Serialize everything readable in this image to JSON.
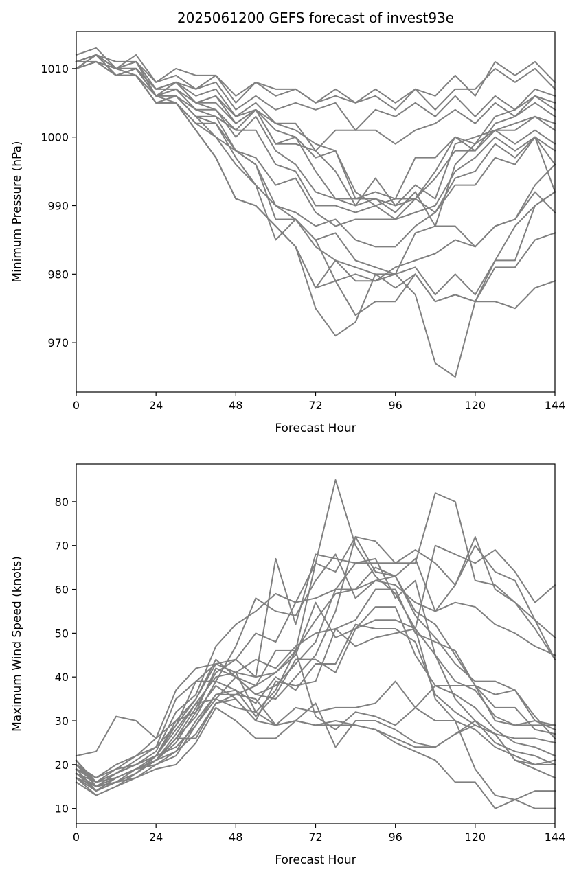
{
  "chart_data": [
    {
      "type": "line",
      "title": "2025061200 GEFS forecast of invest93e",
      "xlabel": "Forecast Hour",
      "ylabel": "Minimum Pressure (hPa)",
      "xlim": [
        0,
        144
      ],
      "ylim": [
        962.8,
        1015.4
      ],
      "xticks": [
        0,
        24,
        48,
        72,
        96,
        120,
        144
      ],
      "yticks": [
        970,
        980,
        990,
        1000,
        1010
      ],
      "grid": false,
      "line_color": "#808080",
      "x": [
        0,
        6,
        12,
        18,
        24,
        30,
        36,
        42,
        48,
        54,
        60,
        66,
        72,
        78,
        84,
        90,
        96,
        102,
        108,
        114,
        120,
        126,
        132,
        138,
        144
      ],
      "series": [
        {
          "values": [
            1012,
            1013,
            1010,
            1012,
            1008,
            1010,
            1009,
            1009,
            1006,
            1008,
            1007,
            1007,
            1005,
            1007,
            1005,
            1007,
            1005,
            1007,
            1006,
            1009,
            1006,
            1011,
            1009,
            1011,
            1008
          ]
        },
        {
          "values": [
            1011,
            1012,
            1011,
            1011,
            1008,
            1009,
            1007,
            1009,
            1005,
            1008,
            1006,
            1007,
            1005,
            1006,
            1005,
            1006,
            1004,
            1007,
            1004,
            1007,
            1007,
            1010,
            1008,
            1010,
            1007
          ]
        },
        {
          "values": [
            1011,
            1012,
            1009,
            1010,
            1007,
            1008,
            1007,
            1008,
            1004,
            1006,
            1004,
            1005,
            1004,
            1005,
            1001,
            1004,
            1003,
            1005,
            1003,
            1006,
            1003,
            1006,
            1004,
            1007,
            1006
          ]
        },
        {
          "values": [
            1010,
            1012,
            1010,
            1011,
            1007,
            1008,
            1006,
            1007,
            1003,
            1005,
            1002,
            1002,
            998,
            1001,
            1001,
            1001,
            999,
            1001,
            1002,
            1004,
            1002,
            1005,
            1003,
            1006,
            1005
          ]
        },
        {
          "values": [
            1011,
            1012,
            1009,
            1010,
            1007,
            1008,
            1005,
            1006,
            1003,
            1004,
            1002,
            1001,
            999,
            998,
            991,
            992,
            991,
            991,
            995,
            1000,
            999,
            1003,
            1004,
            1006,
            1004
          ]
        },
        {
          "values": [
            1010,
            1011,
            1010,
            1011,
            1006,
            1008,
            1005,
            1006,
            1002,
            1004,
            1001,
            1000,
            997,
            998,
            992,
            990,
            991,
            997,
            997,
            1000,
            998,
            1002,
            1003,
            1005,
            1003
          ]
        },
        {
          "values": [
            1011,
            1012,
            1010,
            1010,
            1007,
            1007,
            1005,
            1005,
            1002,
            1004,
            999,
            999,
            998,
            995,
            990,
            994,
            990,
            993,
            991,
            999,
            1000,
            1001,
            1002,
            1003,
            1002
          ]
        },
        {
          "values": [
            1010,
            1012,
            1009,
            1010,
            1006,
            1007,
            1005,
            1004,
            1001,
            1004,
            999,
            1000,
            995,
            991,
            991,
            991,
            990,
            991,
            994,
            998,
            998,
            1001,
            1001,
            1003,
            1001
          ]
        },
        {
          "values": [
            1011,
            1012,
            1010,
            1010,
            1006,
            1007,
            1004,
            1004,
            1000,
            1003,
            998,
            996,
            992,
            991,
            990,
            991,
            989,
            992,
            987,
            996,
            999,
            1001,
            999,
            1001,
            999
          ]
        },
        {
          "values": [
            1010,
            1012,
            1009,
            1009,
            1005,
            1006,
            1004,
            1003,
            1001,
            1001,
            996,
            995,
            990,
            990,
            989,
            990,
            988,
            989,
            990,
            995,
            997,
            1000,
            998,
            1000,
            998
          ]
        },
        {
          "values": [
            1011,
            1012,
            1010,
            1010,
            1006,
            1006,
            1003,
            1003,
            998,
            997,
            993,
            994,
            989,
            987,
            988,
            988,
            988,
            991,
            989,
            994,
            995,
            999,
            997,
            1000,
            996
          ]
        },
        {
          "values": [
            1010,
            1011,
            1009,
            1009,
            1005,
            1006,
            1003,
            1002,
            998,
            996,
            990,
            989,
            987,
            988,
            985,
            984,
            984,
            987,
            989,
            993,
            993,
            997,
            996,
            1000,
            992
          ]
        },
        {
          "values": [
            1011,
            1011,
            1009,
            1009,
            1005,
            1005,
            1002,
            1002,
            997,
            993,
            990,
            988,
            985,
            986,
            982,
            981,
            980,
            986,
            987,
            987,
            984,
            987,
            988,
            993,
            996
          ]
        },
        {
          "values": [
            1011,
            1012,
            1010,
            1009,
            1005,
            1006,
            1003,
            1000,
            998,
            996,
            988,
            988,
            984,
            982,
            979,
            979,
            981,
            982,
            983,
            985,
            984,
            987,
            988,
            992,
            989
          ]
        },
        {
          "values": [
            1010,
            1012,
            1009,
            1009,
            1006,
            1005,
            1002,
            1000,
            996,
            993,
            985,
            988,
            985,
            979,
            980,
            979,
            980,
            981,
            977,
            980,
            977,
            982,
            982,
            990,
            992
          ]
        },
        {
          "values": [
            1011,
            1012,
            1009,
            1009,
            1005,
            1005,
            1001,
            997,
            991,
            990,
            987,
            984,
            978,
            982,
            981,
            980,
            978,
            980,
            976,
            977,
            976,
            976,
            975,
            978,
            979
          ]
        },
        {
          "values": [
            1010,
            1011,
            1010,
            1009,
            1005,
            1005,
            1001,
            997,
            991,
            990,
            987,
            984,
            978,
            979,
            974,
            976,
            976,
            980,
            976,
            977,
            976,
            981,
            981,
            985,
            986
          ]
        },
        {
          "values": [
            1011,
            1012,
            1009,
            1009,
            1005,
            1005,
            1001,
            997,
            991,
            990,
            987,
            984,
            975,
            971,
            973,
            980,
            980,
            977,
            967,
            965,
            976,
            982,
            987,
            990,
            992
          ]
        }
      ]
    },
    {
      "type": "line",
      "title": "",
      "xlabel": "Forecast Hour",
      "ylabel": "Maximum Wind Speed (knots)",
      "xlim": [
        0,
        144
      ],
      "ylim": [
        6.5,
        88.6
      ],
      "xticks": [
        0,
        24,
        48,
        72,
        96,
        120,
        144
      ],
      "yticks": [
        10,
        20,
        30,
        40,
        50,
        60,
        70,
        80
      ],
      "grid": false,
      "line_color": "#808080",
      "x": [
        0,
        6,
        12,
        18,
        24,
        30,
        36,
        42,
        48,
        54,
        60,
        66,
        72,
        78,
        84,
        90,
        96,
        102,
        108,
        114,
        120,
        126,
        132,
        138,
        144
      ],
      "series": [
        {
          "values": [
            22,
            23,
            31,
            30,
            26,
            30,
            32,
            42,
            40,
            36,
            35,
            40,
            45,
            55,
            72,
            71,
            66,
            66,
            82,
            80,
            62,
            61,
            57,
            51,
            44
          ]
        },
        {
          "values": [
            20,
            17,
            19,
            22,
            24,
            35,
            39,
            43,
            41,
            32,
            37,
            46,
            66,
            85,
            70,
            63,
            59,
            51,
            70,
            68,
            66,
            69,
            64,
            57,
            61
          ]
        },
        {
          "values": [
            19,
            17,
            20,
            22,
            26,
            37,
            42,
            43,
            41,
            40,
            67,
            52,
            68,
            67,
            66,
            66,
            66,
            69,
            66,
            61,
            72,
            60,
            57,
            53,
            49
          ]
        },
        {
          "values": [
            18,
            16,
            18,
            20,
            23,
            32,
            36,
            47,
            52,
            55,
            59,
            57,
            66,
            64,
            72,
            64,
            63,
            67,
            55,
            57,
            56,
            52,
            50,
            47,
            45
          ]
        },
        {
          "values": [
            21,
            16,
            19,
            20,
            22,
            29,
            39,
            39,
            47,
            58,
            55,
            54,
            62,
            68,
            58,
            62,
            61,
            57,
            55,
            61,
            70,
            64,
            62,
            53,
            44
          ]
        },
        {
          "values": [
            17,
            15,
            18,
            21,
            24,
            29,
            35,
            43,
            44,
            50,
            48,
            57,
            58,
            60,
            60,
            62,
            63,
            55,
            52,
            45,
            38,
            36,
            37,
            30,
            29
          ]
        },
        {
          "values": [
            20,
            15,
            17,
            19,
            22,
            30,
            35,
            44,
            40,
            38,
            46,
            46,
            53,
            59,
            60,
            65,
            63,
            54,
            49,
            43,
            39,
            39,
            37,
            31,
            26
          ]
        },
        {
          "values": [
            18,
            15,
            17,
            19,
            21,
            27,
            34,
            40,
            41,
            44,
            42,
            47,
            50,
            51,
            53,
            60,
            60,
            50,
            48,
            46,
            38,
            33,
            33,
            28,
            27
          ]
        },
        {
          "values": [
            19,
            16,
            18,
            20,
            22,
            28,
            34,
            35,
            40,
            36,
            38,
            43,
            48,
            60,
            66,
            67,
            58,
            62,
            45,
            39,
            37,
            31,
            29,
            30,
            28
          ]
        },
        {
          "values": [
            17,
            14,
            17,
            19,
            21,
            26,
            33,
            41,
            44,
            40,
            41,
            45,
            57,
            49,
            51,
            56,
            56,
            45,
            38,
            36,
            33,
            28,
            25,
            24,
            22
          ]
        },
        {
          "values": [
            20,
            16,
            17,
            19,
            21,
            26,
            31,
            39,
            37,
            34,
            40,
            37,
            43,
            43,
            52,
            51,
            51,
            48,
            36,
            32,
            29,
            27,
            26,
            26,
            25
          ]
        },
        {
          "values": [
            18,
            15,
            16,
            18,
            21,
            25,
            32,
            38,
            35,
            30,
            39,
            38,
            39,
            51,
            47,
            49,
            50,
            51,
            45,
            35,
            30,
            25,
            23,
            22,
            20
          ]
        },
        {
          "values": [
            19,
            14,
            17,
            19,
            21,
            23,
            30,
            36,
            37,
            31,
            36,
            44,
            44,
            41,
            51,
            53,
            53,
            51,
            35,
            30,
            28,
            24,
            22,
            20,
            20
          ]
        },
        {
          "values": [
            21,
            15,
            16,
            19,
            20,
            22,
            29,
            35,
            33,
            32,
            29,
            33,
            32,
            33,
            33,
            34,
            39,
            33,
            38,
            38,
            38,
            30,
            29,
            29,
            29
          ]
        },
        {
          "values": [
            17,
            13,
            15,
            18,
            22,
            24,
            29,
            36,
            36,
            38,
            41,
            46,
            31,
            28,
            32,
            31,
            29,
            33,
            30,
            30,
            19,
            13,
            12,
            14,
            14
          ]
        },
        {
          "values": [
            18,
            14,
            16,
            18,
            21,
            26,
            26,
            34,
            35,
            30,
            29,
            30,
            34,
            24,
            30,
            30,
            28,
            25,
            24,
            27,
            30,
            27,
            21,
            19,
            17
          ]
        },
        {
          "values": [
            16,
            13,
            15,
            17,
            19,
            20,
            25,
            33,
            30,
            26,
            26,
            30,
            29,
            30,
            29,
            28,
            25,
            23,
            21,
            16,
            16,
            10,
            12,
            10,
            10
          ]
        },
        {
          "values": [
            17,
            14,
            16,
            17,
            20,
            23,
            27,
            34,
            36,
            35,
            29,
            30,
            29,
            29,
            29,
            28,
            26,
            24,
            24,
            27,
            29,
            27,
            21,
            20,
            21
          ]
        }
      ]
    }
  ]
}
